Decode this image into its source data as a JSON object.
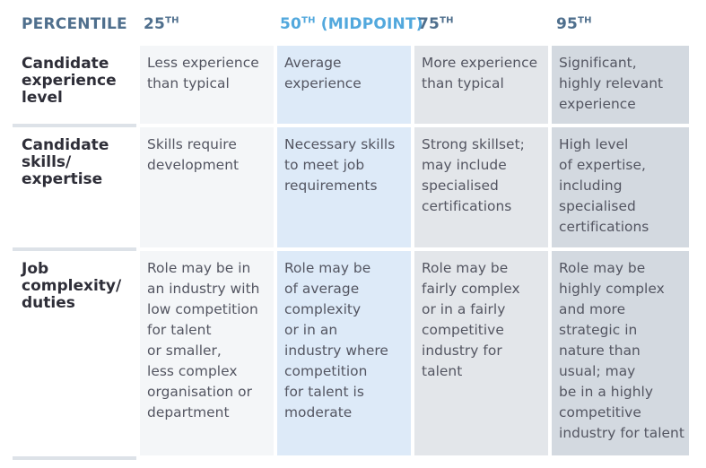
{
  "header": {
    "label": "PERCENTILE",
    "columns": [
      {
        "main": "25",
        "sup": "TH",
        "suffix": ""
      },
      {
        "main": "50",
        "sup": "TH",
        "suffix": " (MIDPOINT)"
      },
      {
        "main": "75",
        "sup": "TH",
        "suffix": ""
      },
      {
        "main": "95",
        "sup": "TH",
        "suffix": ""
      }
    ]
  },
  "rows": [
    {
      "label": [
        "Candidate",
        "experience",
        "level"
      ],
      "cells": [
        [
          "Less experience",
          "than typical"
        ],
        [
          "Average",
          "experience"
        ],
        [
          "More experience",
          "than typical"
        ],
        [
          "Significant,",
          "highly relevant",
          "experience"
        ]
      ]
    },
    {
      "label": [
        "Candidate",
        "skills/",
        "expertise"
      ],
      "cells": [
        [
          "Skills require",
          "development"
        ],
        [
          "Necessary skills",
          "to meet job",
          "requirements"
        ],
        [
          "Strong skillset;",
          "may include",
          "specialised",
          "certifications"
        ],
        [
          "High level",
          "of expertise,",
          "including",
          "specialised",
          "certifications"
        ]
      ]
    },
    {
      "label": [
        "Job",
        "complexity/",
        "duties"
      ],
      "cells": [
        [
          "Role may be in",
          "an industry with",
          "low competition",
          "for talent",
          "or smaller,",
          "less complex",
          "organisation or",
          "department"
        ],
        [
          "Role may be",
          "of average",
          "complexity",
          "or in an",
          "industry where",
          "competition",
          "for talent is",
          "moderate"
        ],
        [
          "Role may be",
          "fairly complex",
          "or in a fairly",
          "competitive",
          "industry for",
          "talent"
        ],
        [
          "Role may be",
          "highly complex",
          "and more",
          "strategic in",
          "nature than",
          "usual; may",
          "be in a highly",
          "competitive",
          "industry for talent"
        ]
      ]
    }
  ]
}
